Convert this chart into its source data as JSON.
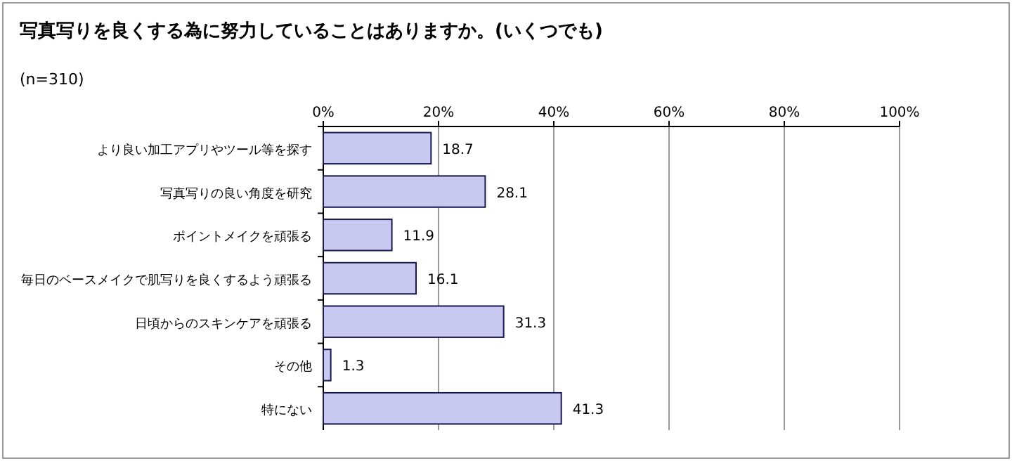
{
  "chart_data": {
    "type": "bar",
    "orientation": "horizontal",
    "title": "写真写りを良くする為に努力していることはありますか。(いくつでも)",
    "subtitle": "(n=310)",
    "categories": [
      "より良い加工アプリやツール等を探す",
      "写真写りの良い角度を研究",
      "ポイントメイクを頑張る",
      "毎日のベースメイクで肌写りを良くするよう頑張る",
      "日頃からのスキンケアを頑張る",
      "その他",
      "特にない"
    ],
    "values": [
      18.7,
      28.1,
      11.9,
      16.1,
      31.3,
      1.3,
      41.3
    ],
    "color": "#c8c8f0",
    "xlim": [
      0,
      100
    ],
    "xticks": [
      {
        "value": 0,
        "label": "0%"
      },
      {
        "value": 20,
        "label": "20%"
      },
      {
        "value": 40,
        "label": "40%"
      },
      {
        "value": 60,
        "label": "60%"
      },
      {
        "value": 80,
        "label": "80%"
      },
      {
        "value": 100,
        "label": "100%"
      }
    ],
    "grid": "x",
    "data_labels": true
  }
}
